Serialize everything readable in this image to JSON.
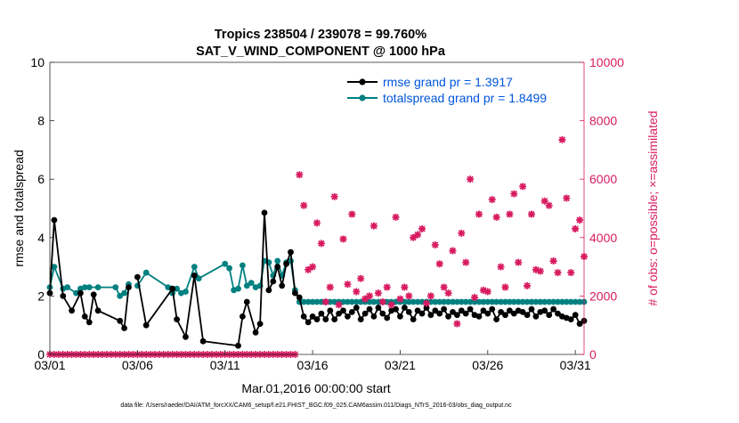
{
  "chart_data": {
    "type": "line",
    "title": "Tropics 238504 / 239078 = 99.760%",
    "subtitle": "SAT_V_WIND_COMPONENT @ 1000 hPa",
    "xlabel": "Mar.01,2016 00:00:00 start",
    "ylabel": "rmse and totalspread",
    "ylabel_right": "# of obs: o=possible; ×=assimilated",
    "footer": "data file: /Users/raeder/DAI/ATM_forcXX/CAM6_setup/f.e21.FHIST_BGC.f09_025.CAM6assim.011/Diags_NTrS_2016-03/obs_diag_output.nc",
    "xlim": [
      1,
      31.5
    ],
    "ylim": [
      0,
      10
    ],
    "ylim_right": [
      0,
      10000
    ],
    "x_ticks": [
      1,
      6,
      11,
      16,
      21,
      26,
      31
    ],
    "x_tick_labels": [
      "03/01",
      "03/06",
      "03/11",
      "03/16",
      "03/21",
      "03/26",
      "03/31"
    ],
    "y_ticks": [
      "0",
      "2",
      "4",
      "6",
      "8",
      "10"
    ],
    "y_ticks_right": [
      "0",
      "2000",
      "4000",
      "6000",
      "8000",
      "10000"
    ],
    "legend": {
      "location": "top-right",
      "entries": [
        "rmse grand pr = 1.3917",
        "totalspread grand pr = 1.8499"
      ]
    },
    "colors": {
      "rmse": "#000000",
      "spread": "#008080",
      "obs": "#d81b60",
      "legend_text": "#0055dd"
    },
    "series": [
      {
        "name": "rmse",
        "values": [
          [
            1.0,
            2.1
          ],
          [
            1.25,
            4.6
          ],
          [
            1.75,
            2.0
          ],
          [
            2.25,
            1.5
          ],
          [
            2.75,
            2.1
          ],
          [
            3.0,
            1.3
          ],
          [
            3.25,
            1.1
          ],
          [
            3.5,
            2.05
          ],
          [
            3.75,
            1.5
          ],
          [
            5.0,
            1.15
          ],
          [
            5.25,
            0.9
          ],
          [
            5.5,
            2.3
          ],
          [
            5.75,
            null
          ],
          [
            6.0,
            2.65
          ],
          [
            6.5,
            1.0
          ],
          [
            8.0,
            2.25
          ],
          [
            8.25,
            1.2
          ],
          [
            8.75,
            0.6
          ],
          [
            9.25,
            2.7
          ],
          [
            9.75,
            0.45
          ],
          [
            11.75,
            0.3
          ],
          [
            12.0,
            1.3
          ],
          [
            12.25,
            1.8
          ],
          [
            12.75,
            0.75
          ],
          [
            13.0,
            1.05
          ],
          [
            13.25,
            4.85
          ],
          [
            13.5,
            2.2
          ],
          [
            13.75,
            2.5
          ],
          [
            14.0,
            3.0
          ],
          [
            14.25,
            2.35
          ],
          [
            14.5,
            3.1
          ],
          [
            14.75,
            3.5
          ],
          [
            15.0,
            2.1
          ],
          [
            15.25,
            1.95
          ],
          [
            15.5,
            1.3
          ],
          [
            15.75,
            1.1
          ],
          [
            16.0,
            1.3
          ],
          [
            16.25,
            1.2
          ],
          [
            16.5,
            1.4
          ],
          [
            16.75,
            1.2
          ],
          [
            17.0,
            1.5
          ],
          [
            17.25,
            1.2
          ],
          [
            17.5,
            1.4
          ],
          [
            17.75,
            1.5
          ],
          [
            18.0,
            1.3
          ],
          [
            18.25,
            1.45
          ],
          [
            18.5,
            1.6
          ],
          [
            18.75,
            1.2
          ],
          [
            19.0,
            1.4
          ],
          [
            19.25,
            1.55
          ],
          [
            19.5,
            1.3
          ],
          [
            19.75,
            1.6
          ],
          [
            20.0,
            1.4
          ],
          [
            20.25,
            1.25
          ],
          [
            20.5,
            1.5
          ],
          [
            20.75,
            1.55
          ],
          [
            21.0,
            1.3
          ],
          [
            21.25,
            1.6
          ],
          [
            21.5,
            1.45
          ],
          [
            21.75,
            1.2
          ],
          [
            22.0,
            1.5
          ],
          [
            22.25,
            1.4
          ],
          [
            22.5,
            1.6
          ],
          [
            22.75,
            1.35
          ],
          [
            23.0,
            1.5
          ],
          [
            23.25,
            1.4
          ],
          [
            23.5,
            1.55
          ],
          [
            23.75,
            1.3
          ],
          [
            24.0,
            1.45
          ],
          [
            24.25,
            1.35
          ],
          [
            24.5,
            1.5
          ],
          [
            24.75,
            1.4
          ],
          [
            25.0,
            1.55
          ],
          [
            25.25,
            1.35
          ],
          [
            25.5,
            1.3
          ],
          [
            25.75,
            1.5
          ],
          [
            26.0,
            1.4
          ],
          [
            26.25,
            1.55
          ],
          [
            26.5,
            1.2
          ],
          [
            26.75,
            1.45
          ],
          [
            27.0,
            1.35
          ],
          [
            27.25,
            1.5
          ],
          [
            27.5,
            1.4
          ],
          [
            27.75,
            1.5
          ],
          [
            28.0,
            1.45
          ],
          [
            28.25,
            1.35
          ],
          [
            28.5,
            1.55
          ],
          [
            28.75,
            1.3
          ],
          [
            29.0,
            1.45
          ],
          [
            29.25,
            1.5
          ],
          [
            29.5,
            1.35
          ],
          [
            29.75,
            1.55
          ],
          [
            30.0,
            1.4
          ],
          [
            30.25,
            1.3
          ],
          [
            30.5,
            1.25
          ],
          [
            30.75,
            1.2
          ],
          [
            31.0,
            1.35
          ],
          [
            31.25,
            1.05
          ],
          [
            31.5,
            1.15
          ]
        ]
      },
      {
        "name": "totalspread",
        "values": [
          [
            1.0,
            2.3
          ],
          [
            1.25,
            3.0
          ],
          [
            1.75,
            2.25
          ],
          [
            2.0,
            2.3
          ],
          [
            2.5,
            2.1
          ],
          [
            2.75,
            2.25
          ],
          [
            3.0,
            2.3
          ],
          [
            3.25,
            2.3
          ],
          [
            3.75,
            2.3
          ],
          [
            4.75,
            2.3
          ],
          [
            5.0,
            2.0
          ],
          [
            5.25,
            2.1
          ],
          [
            5.5,
            2.4
          ],
          [
            5.75,
            null
          ],
          [
            6.0,
            2.35
          ],
          [
            6.5,
            2.8
          ],
          [
            7.75,
            2.3
          ],
          [
            8.0,
            2.1
          ],
          [
            8.25,
            2.25
          ],
          [
            8.5,
            2.1
          ],
          [
            8.75,
            2.15
          ],
          [
            9.25,
            3.0
          ],
          [
            9.5,
            2.6
          ],
          [
            11.0,
            3.1
          ],
          [
            11.25,
            2.95
          ],
          [
            11.5,
            2.2
          ],
          [
            11.75,
            2.25
          ],
          [
            12.0,
            3.05
          ],
          [
            12.25,
            2.35
          ],
          [
            12.5,
            2.45
          ],
          [
            12.75,
            2.3
          ],
          [
            13.0,
            2.35
          ],
          [
            13.25,
            3.2
          ],
          [
            13.5,
            3.15
          ],
          [
            13.75,
            2.7
          ],
          [
            14.0,
            3.2
          ],
          [
            14.25,
            2.7
          ],
          [
            14.5,
            3.15
          ],
          [
            14.75,
            3.2
          ],
          [
            15.0,
            2.2
          ],
          [
            15.25,
            1.8
          ],
          [
            15.5,
            1.8
          ],
          [
            15.75,
            1.8
          ],
          [
            16.0,
            1.8
          ],
          [
            16.25,
            1.8
          ],
          [
            16.5,
            1.8
          ],
          [
            16.75,
            1.8
          ],
          [
            17.0,
            1.8
          ],
          [
            17.25,
            1.8
          ],
          [
            17.5,
            1.8
          ],
          [
            17.75,
            1.8
          ],
          [
            18.0,
            1.8
          ],
          [
            18.25,
            1.8
          ],
          [
            18.5,
            1.8
          ],
          [
            18.75,
            1.8
          ],
          [
            19.0,
            1.8
          ],
          [
            19.25,
            1.8
          ],
          [
            19.5,
            1.8
          ],
          [
            19.75,
            1.8
          ],
          [
            20.0,
            1.8
          ],
          [
            20.25,
            1.8
          ],
          [
            20.5,
            1.8
          ],
          [
            20.75,
            1.8
          ],
          [
            21.0,
            1.8
          ],
          [
            21.25,
            1.8
          ],
          [
            21.5,
            1.8
          ],
          [
            21.75,
            1.8
          ],
          [
            22.0,
            1.8
          ],
          [
            22.25,
            1.8
          ],
          [
            22.5,
            1.8
          ],
          [
            22.75,
            1.8
          ],
          [
            23.0,
            1.8
          ],
          [
            23.25,
            1.8
          ],
          [
            23.5,
            1.8
          ],
          [
            23.75,
            1.8
          ],
          [
            24.0,
            1.8
          ],
          [
            24.25,
            1.8
          ],
          [
            24.5,
            1.8
          ],
          [
            24.75,
            1.8
          ],
          [
            25.0,
            1.8
          ],
          [
            25.25,
            1.8
          ],
          [
            25.5,
            1.8
          ],
          [
            25.75,
            1.8
          ],
          [
            26.0,
            1.8
          ],
          [
            26.25,
            1.8
          ],
          [
            26.5,
            1.8
          ],
          [
            26.75,
            1.8
          ],
          [
            27.0,
            1.8
          ],
          [
            27.25,
            1.8
          ],
          [
            27.5,
            1.8
          ],
          [
            27.75,
            1.8
          ],
          [
            28.0,
            1.8
          ],
          [
            28.25,
            1.8
          ],
          [
            28.5,
            1.8
          ],
          [
            28.75,
            1.8
          ],
          [
            29.0,
            1.8
          ],
          [
            29.25,
            1.8
          ],
          [
            29.5,
            1.8
          ],
          [
            29.75,
            1.8
          ],
          [
            30.0,
            1.8
          ],
          [
            30.25,
            1.8
          ],
          [
            30.5,
            1.8
          ],
          [
            30.75,
            1.8
          ],
          [
            31.0,
            1.8
          ],
          [
            31.25,
            1.8
          ],
          [
            31.5,
            1.8
          ]
        ]
      },
      {
        "name": "obs_count",
        "axis": "right",
        "values": [
          [
            15.25,
            6150
          ],
          [
            15.5,
            5100
          ],
          [
            15.75,
            2900
          ],
          [
            16.0,
            3000
          ],
          [
            16.25,
            4500
          ],
          [
            16.5,
            3800
          ],
          [
            16.75,
            1800
          ],
          [
            17.0,
            2300
          ],
          [
            17.25,
            5400
          ],
          [
            17.5,
            1700
          ],
          [
            17.75,
            3950
          ],
          [
            18.0,
            2400
          ],
          [
            18.25,
            4800
          ],
          [
            18.5,
            2150
          ],
          [
            18.75,
            2600
          ],
          [
            19.0,
            1900
          ],
          [
            19.25,
            2000
          ],
          [
            19.5,
            4400
          ],
          [
            19.75,
            2100
          ],
          [
            20.0,
            1800
          ],
          [
            20.25,
            2300
          ],
          [
            20.5,
            1700
          ],
          [
            20.75,
            4700
          ],
          [
            21.0,
            1900
          ],
          [
            21.25,
            2300
          ],
          [
            21.5,
            2000
          ],
          [
            21.75,
            4000
          ],
          [
            22.0,
            4100
          ],
          [
            22.25,
            4300
          ],
          [
            22.5,
            1750
          ],
          [
            22.75,
            2000
          ],
          [
            23.0,
            3750
          ],
          [
            23.25,
            3100
          ],
          [
            23.5,
            2300
          ],
          [
            23.75,
            2100
          ],
          [
            24.0,
            3550
          ],
          [
            24.25,
            1050
          ],
          [
            24.5,
            4150
          ],
          [
            24.75,
            3150
          ],
          [
            25.0,
            6000
          ],
          [
            25.25,
            1950
          ],
          [
            25.5,
            4800
          ],
          [
            25.75,
            2200
          ],
          [
            26.0,
            2150
          ],
          [
            26.25,
            5300
          ],
          [
            26.5,
            4700
          ],
          [
            26.75,
            3000
          ],
          [
            27.0,
            2300
          ],
          [
            27.25,
            4800
          ],
          [
            27.5,
            5500
          ],
          [
            27.75,
            3150
          ],
          [
            28.0,
            5750
          ],
          [
            28.25,
            2350
          ],
          [
            28.5,
            4800
          ],
          [
            28.75,
            2900
          ],
          [
            29.0,
            2850
          ],
          [
            29.25,
            5250
          ],
          [
            29.5,
            5100
          ],
          [
            29.75,
            3200
          ],
          [
            30.0,
            2800
          ],
          [
            30.25,
            7350
          ],
          [
            30.5,
            5350
          ],
          [
            30.75,
            2800
          ],
          [
            31.0,
            4300
          ],
          [
            31.25,
            4600
          ],
          [
            31.5,
            3350
          ]
        ]
      }
    ]
  }
}
